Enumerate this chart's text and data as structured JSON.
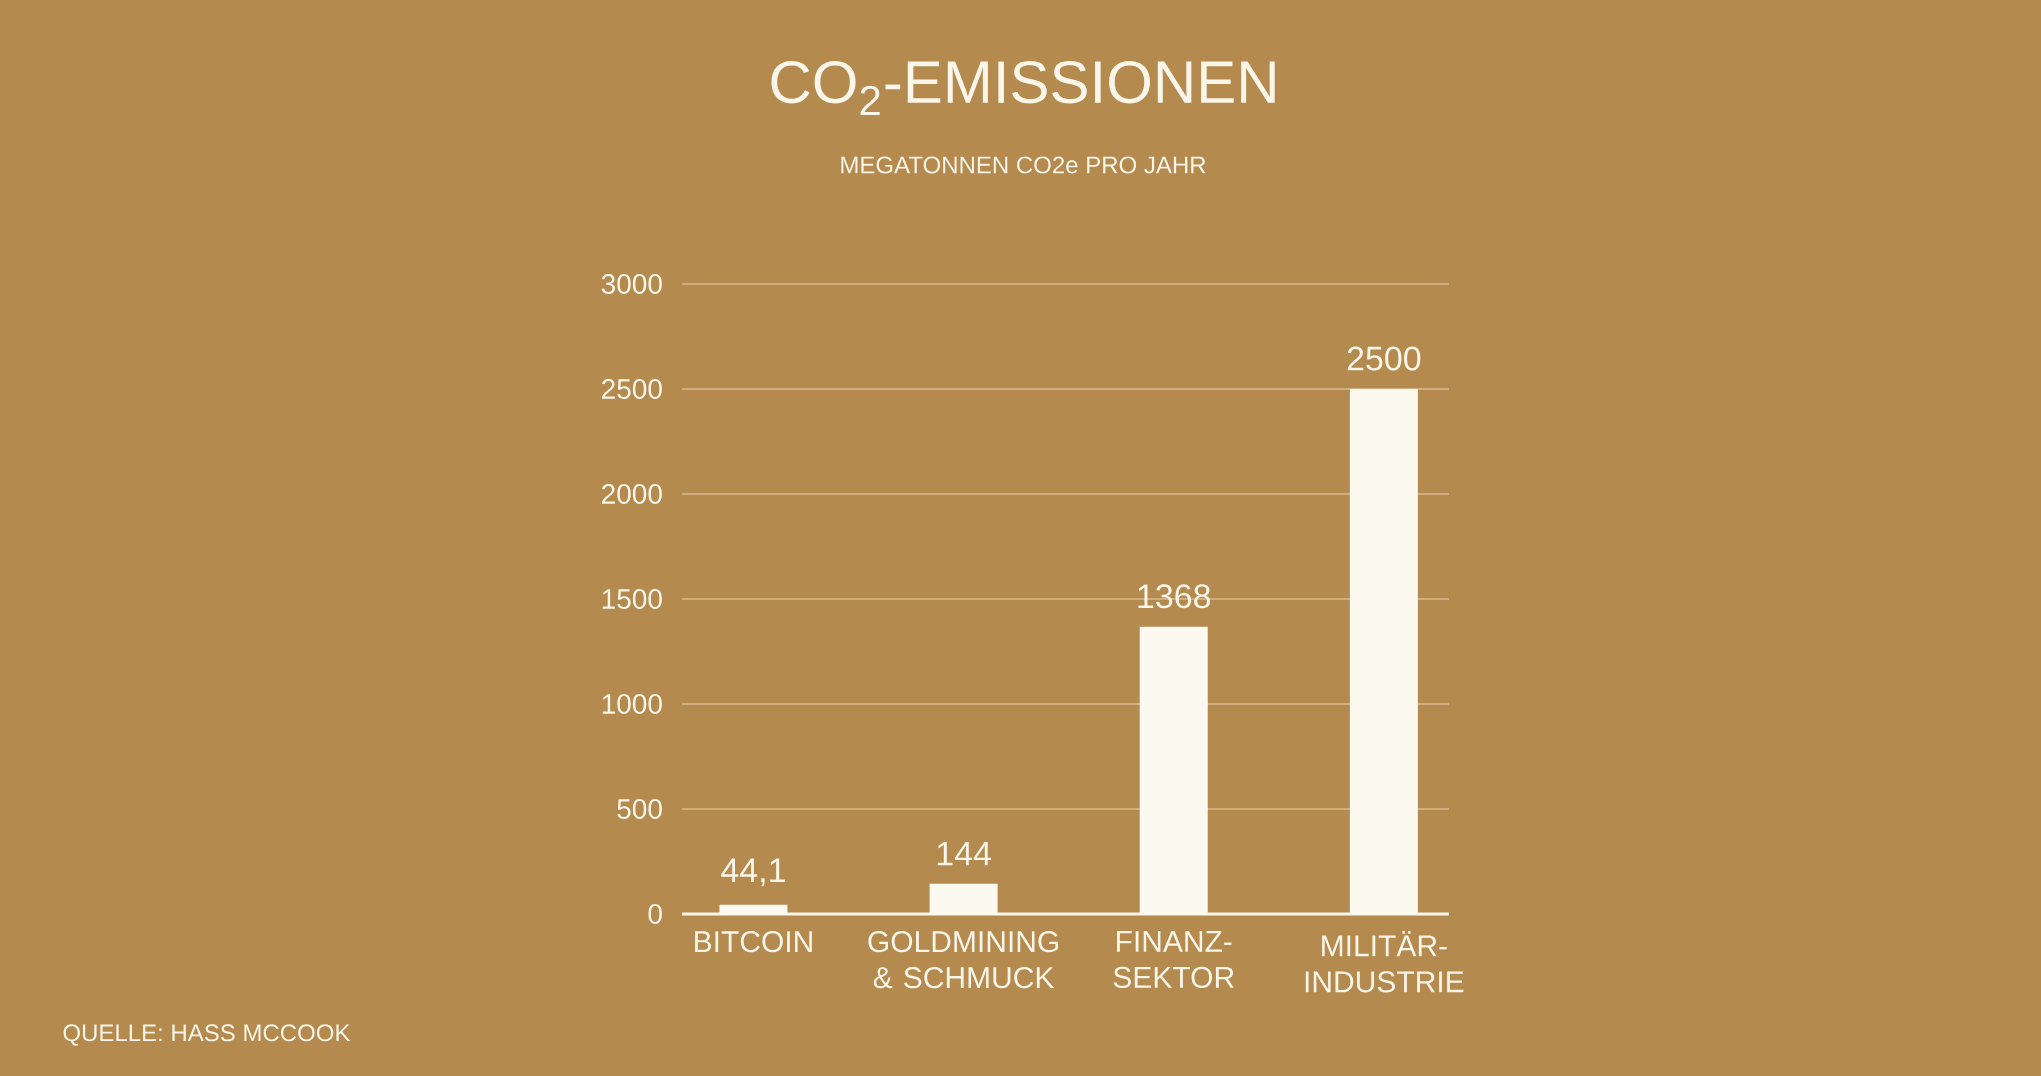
{
  "chart_data": {
    "type": "bar",
    "title": "CO$_{2}$-EMISSIONEN",
    "subtitle": "MEGATONNEN CO2e PRO JAHR",
    "categories": [
      "BITCOIN",
      "GOLDMINING & SCHMUCK",
      "FINANZ-SEKTOR",
      "MILITÄR-INDUSTRIE"
    ],
    "values": [
      44.1,
      144,
      1368,
      2500
    ],
    "value_labels": [
      "44,1",
      "144",
      "1368",
      "2500"
    ],
    "color": "#fcf9f0",
    "ylim": [
      0,
      3000
    ],
    "yticks": [
      0,
      500,
      1000,
      1500,
      2000,
      2500,
      3000
    ],
    "grid": "y",
    "annotations": [
      "QUELLE: HASS MCCOOK"
    ]
  }
}
